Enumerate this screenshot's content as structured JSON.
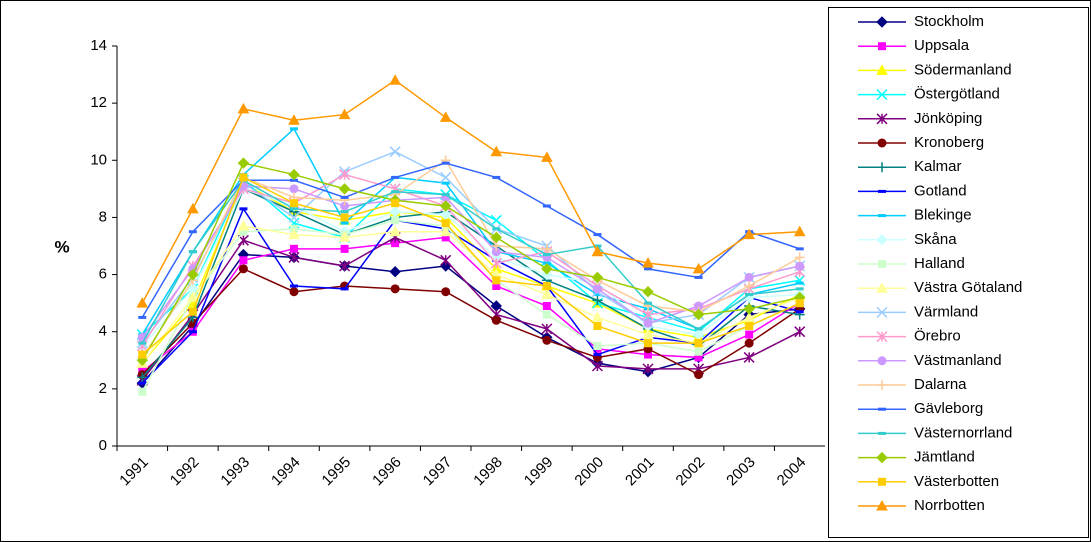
{
  "chart_data": {
    "type": "line",
    "y_label": "%",
    "categories": [
      "1991",
      "1992",
      "1993",
      "1994",
      "1995",
      "1996",
      "1997",
      "1998",
      "1999",
      "2000",
      "2001",
      "2002",
      "2003",
      "2004"
    ],
    "ylim": [
      0,
      14
    ],
    "yticks": [
      0,
      2,
      4,
      6,
      8,
      10,
      12,
      14
    ],
    "grid": false,
    "legend": "right",
    "series": [
      {
        "name": "Stockholm",
        "color": "#000080",
        "marker": "diamond",
        "values": [
          2.2,
          4.2,
          6.7,
          6.6,
          6.3,
          6.1,
          6.3,
          4.9,
          3.8,
          2.9,
          2.6,
          3.1,
          4.6,
          4.8
        ]
      },
      {
        "name": "Uppsala",
        "color": "#FF00FF",
        "marker": "square",
        "values": [
          2.6,
          4.0,
          6.5,
          6.9,
          6.9,
          7.1,
          7.3,
          5.6,
          4.9,
          3.4,
          3.2,
          3.1,
          3.9,
          5.0
        ]
      },
      {
        "name": "Södermanland",
        "color": "#FFFF00",
        "marker": "triangle",
        "values": [
          2.9,
          5.0,
          9.2,
          8.2,
          7.9,
          8.2,
          8.0,
          6.2,
          5.6,
          5.0,
          4.1,
          3.8,
          4.4,
          5.3
        ]
      },
      {
        "name": "Östergötland",
        "color": "#00FFFF",
        "marker": "x",
        "values": [
          3.9,
          5.5,
          9.3,
          7.8,
          7.3,
          9.0,
          8.8,
          7.9,
          6.5,
          5.0,
          4.5,
          4.0,
          5.5,
          5.8
        ]
      },
      {
        "name": "Jönköping",
        "color": "#800080",
        "marker": "star",
        "values": [
          2.3,
          4.6,
          7.2,
          6.6,
          6.3,
          7.3,
          6.5,
          4.6,
          4.1,
          2.8,
          2.7,
          2.7,
          3.1,
          4.0
        ]
      },
      {
        "name": "Kronoberg",
        "color": "#800000",
        "marker": "circle",
        "values": [
          2.5,
          4.3,
          6.2,
          5.4,
          5.6,
          5.5,
          5.4,
          4.4,
          3.7,
          3.1,
          3.4,
          2.5,
          3.6,
          4.8
        ]
      },
      {
        "name": "Kalmar",
        "color": "#008080",
        "marker": "plus",
        "values": [
          2.4,
          4.5,
          9.0,
          8.2,
          7.4,
          8.0,
          8.2,
          7.0,
          5.8,
          5.1,
          4.1,
          3.5,
          4.9,
          4.6
        ]
      },
      {
        "name": "Gotland",
        "color": "#0000FF",
        "marker": "dash",
        "values": [
          2.2,
          4.0,
          8.3,
          5.6,
          5.5,
          7.9,
          7.6,
          6.5,
          5.6,
          3.2,
          3.8,
          3.6,
          5.2,
          4.7
        ]
      },
      {
        "name": "Blekinge",
        "color": "#00CCFF",
        "marker": "dash",
        "values": [
          3.9,
          6.8,
          9.5,
          11.1,
          7.8,
          9.4,
          9.2,
          6.8,
          6.4,
          5.3,
          4.8,
          4.1,
          5.3,
          5.7
        ]
      },
      {
        "name": "Skåna",
        "color": "#CCFFFF",
        "marker": "diamond",
        "values": [
          3.5,
          5.5,
          9.0,
          8.4,
          7.5,
          8.2,
          8.1,
          6.6,
          6.0,
          5.7,
          4.2,
          3.9,
          5.2,
          5.3
        ]
      },
      {
        "name": "Halland",
        "color": "#CCFFCC",
        "marker": "square",
        "values": [
          1.9,
          5.2,
          7.5,
          7.6,
          7.4,
          7.9,
          7.7,
          5.8,
          4.6,
          3.5,
          3.6,
          3.3,
          4.2,
          5.0
        ]
      },
      {
        "name": "Västra Götaland",
        "color": "#FFFF99",
        "marker": "triangle",
        "values": [
          2.9,
          5.2,
          7.7,
          7.4,
          7.3,
          7.5,
          7.5,
          6.0,
          5.3,
          4.5,
          3.9,
          3.6,
          4.5,
          5.2
        ]
      },
      {
        "name": "Värmland",
        "color": "#99CCFF",
        "marker": "x",
        "values": [
          3.6,
          5.9,
          9.2,
          8.0,
          9.6,
          10.3,
          9.4,
          7.6,
          7.0,
          5.4,
          4.3,
          4.6,
          5.9,
          6.3
        ]
      },
      {
        "name": "Örebro",
        "color": "#FF99CC",
        "marker": "star",
        "values": [
          3.5,
          6.3,
          9.0,
          8.5,
          9.5,
          9.0,
          8.4,
          6.4,
          6.8,
          5.6,
          4.6,
          4.8,
          5.5,
          6.1
        ]
      },
      {
        "name": "Västmanland",
        "color": "#CC99FF",
        "marker": "circle",
        "values": [
          3.8,
          6.2,
          9.1,
          9.0,
          8.4,
          8.6,
          8.7,
          6.8,
          6.6,
          5.5,
          4.3,
          4.9,
          5.9,
          6.3
        ]
      },
      {
        "name": "Dalarna",
        "color": "#FFCC99",
        "marker": "plus",
        "values": [
          3.1,
          5.8,
          9.4,
          8.7,
          8.6,
          8.8,
          10.0,
          7.0,
          6.9,
          5.8,
          4.9,
          4.7,
          5.6,
          6.6
        ]
      },
      {
        "name": "Gävleborg",
        "color": "#3366FF",
        "marker": "dash",
        "values": [
          4.5,
          7.5,
          9.3,
          9.3,
          8.7,
          9.4,
          9.9,
          9.4,
          8.4,
          7.4,
          6.2,
          5.9,
          7.5,
          6.9
        ]
      },
      {
        "name": "Västernorrland",
        "color": "#33CCCC",
        "marker": "dash",
        "values": [
          3.6,
          6.8,
          9.3,
          8.3,
          8.2,
          8.9,
          8.8,
          7.6,
          6.7,
          7.0,
          5.0,
          4.1,
          5.3,
          5.5
        ]
      },
      {
        "name": "Jämtland",
        "color": "#99CC00",
        "marker": "diamond",
        "values": [
          3.0,
          6.0,
          9.9,
          9.5,
          9.0,
          8.6,
          8.4,
          7.3,
          6.2,
          5.9,
          5.4,
          4.6,
          4.8,
          5.2
        ]
      },
      {
        "name": "Västerbotten",
        "color": "#FFCC00",
        "marker": "square",
        "values": [
          3.2,
          4.7,
          9.4,
          8.5,
          8.0,
          8.5,
          7.8,
          5.8,
          5.6,
          4.2,
          3.6,
          3.6,
          4.2,
          5.0
        ]
      },
      {
        "name": "Norrbotten",
        "color": "#FF9900",
        "marker": "triangle",
        "values": [
          5.0,
          8.3,
          11.8,
          11.4,
          11.6,
          12.8,
          11.5,
          10.3,
          10.1,
          6.8,
          6.4,
          6.2,
          7.4,
          7.5
        ]
      }
    ]
  }
}
